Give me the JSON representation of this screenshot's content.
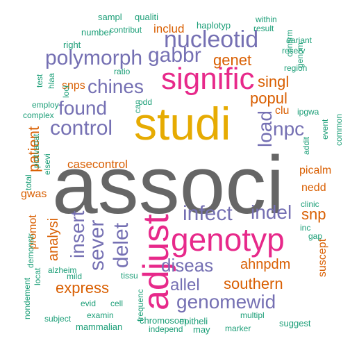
{
  "palette": {
    "green": "#1b9e77",
    "orange": "#d95f02",
    "purple": "#7570b3",
    "pink": "#e7298a",
    "gold": "#e6ab02",
    "gray": "#666666"
  },
  "words": [
    {
      "text": "associ",
      "color": "gray"
    },
    {
      "text": "studi",
      "color": "gold"
    },
    {
      "text": "adjust",
      "color": "pink"
    },
    {
      "text": "genotyp",
      "color": "pink"
    },
    {
      "text": "signific",
      "color": "pink"
    },
    {
      "text": "nucleotid",
      "color": "purple"
    },
    {
      "text": "polymorph",
      "color": "purple"
    },
    {
      "text": "control",
      "color": "purple"
    },
    {
      "text": "infect",
      "color": "purple"
    },
    {
      "text": "gabbr",
      "color": "purple"
    },
    {
      "text": "chines",
      "color": "purple"
    },
    {
      "text": "found",
      "color": "purple"
    },
    {
      "text": "sever",
      "color": "purple"
    },
    {
      "text": "insert",
      "color": "purple"
    },
    {
      "text": "delet",
      "color": "purple"
    },
    {
      "text": "indel",
      "color": "purple"
    },
    {
      "text": "diseas",
      "color": "purple"
    },
    {
      "text": "genomewid",
      "color": "purple"
    },
    {
      "text": "allel",
      "color": "purple"
    },
    {
      "text": "npc",
      "color": "purple"
    },
    {
      "text": "load",
      "color": "purple"
    },
    {
      "text": "singl",
      "color": "orange"
    },
    {
      "text": "genet",
      "color": "orange"
    },
    {
      "text": "popul",
      "color": "orange"
    },
    {
      "text": "patient",
      "color": "orange"
    },
    {
      "text": "express",
      "color": "orange"
    },
    {
      "text": "southern",
      "color": "orange"
    },
    {
      "text": "ahnpdm",
      "color": "orange"
    },
    {
      "text": "snp",
      "color": "orange"
    },
    {
      "text": "analysi",
      "color": "orange"
    },
    {
      "text": "casecontrol",
      "color": "orange"
    },
    {
      "text": "includ",
      "color": "orange"
    },
    {
      "text": "snps",
      "color": "orange"
    },
    {
      "text": "promot",
      "color": "orange"
    },
    {
      "text": "gwas",
      "color": "orange"
    },
    {
      "text": "picalm",
      "color": "orange"
    },
    {
      "text": "nedd",
      "color": "orange"
    },
    {
      "text": "clu",
      "color": "orange"
    },
    {
      "text": "suscept",
      "color": "orange"
    },
    {
      "text": "sampl",
      "color": "green"
    },
    {
      "text": "qualiti",
      "color": "green"
    },
    {
      "text": "haplotyp",
      "color": "green"
    },
    {
      "text": "within",
      "color": "green"
    },
    {
      "text": "result",
      "color": "green"
    },
    {
      "text": "number",
      "color": "green"
    },
    {
      "text": "contribut",
      "color": "green"
    },
    {
      "text": "right",
      "color": "green"
    },
    {
      "text": "confirm",
      "color": "green"
    },
    {
      "text": "genom",
      "color": "green"
    },
    {
      "text": "variant",
      "color": "green"
    },
    {
      "text": "reserv",
      "color": "green"
    },
    {
      "text": "region",
      "color": "green"
    },
    {
      "text": "ratio",
      "color": "green"
    },
    {
      "text": "test",
      "color": "green"
    },
    {
      "text": "hlaa",
      "color": "green"
    },
    {
      "text": "loci",
      "color": "green"
    },
    {
      "text": "employ",
      "color": "green"
    },
    {
      "text": "complex",
      "color": "green"
    },
    {
      "text": "odd",
      "color": "green"
    },
    {
      "text": "can",
      "color": "green"
    },
    {
      "text": "ipgwa",
      "color": "green"
    },
    {
      "text": "event",
      "color": "green"
    },
    {
      "text": "common",
      "color": "green"
    },
    {
      "text": "addit",
      "color": "green"
    },
    {
      "text": "total",
      "color": "green"
    },
    {
      "text": "plot",
      "color": "green"
    },
    {
      "text": "variat",
      "color": "green"
    },
    {
      "text": "elsevi",
      "color": "green"
    },
    {
      "text": "clinic",
      "color": "green"
    },
    {
      "text": "inc",
      "color": "green"
    },
    {
      "text": "gap",
      "color": "green"
    },
    {
      "text": "demonstr",
      "color": "green"
    },
    {
      "text": "alzheim",
      "color": "green"
    },
    {
      "text": "locat",
      "color": "green"
    },
    {
      "text": "mild",
      "color": "green"
    },
    {
      "text": "tissu",
      "color": "green"
    },
    {
      "text": "nondement",
      "color": "green"
    },
    {
      "text": "evid",
      "color": "green"
    },
    {
      "text": "cell",
      "color": "green"
    },
    {
      "text": "frequenc",
      "color": "green"
    },
    {
      "text": "subject",
      "color": "green"
    },
    {
      "text": "examin",
      "color": "green"
    },
    {
      "text": "mammalian",
      "color": "green"
    },
    {
      "text": "chromosom",
      "color": "green"
    },
    {
      "text": "epitheli",
      "color": "green"
    },
    {
      "text": "independ",
      "color": "green"
    },
    {
      "text": "may",
      "color": "green"
    },
    {
      "text": "multipl",
      "color": "green"
    },
    {
      "text": "marker",
      "color": "green"
    },
    {
      "text": "suggest",
      "color": "green"
    }
  ]
}
